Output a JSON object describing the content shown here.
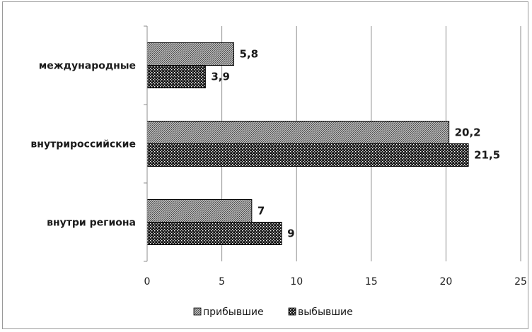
{
  "chart_data": {
    "type": "bar",
    "orientation": "horizontal",
    "categories": [
      "международные",
      "внутрироссийские",
      "внутри региона"
    ],
    "series": [
      {
        "name": "прибывшие",
        "values": [
          5.8,
          20.2,
          7
        ],
        "labels": [
          "5,8",
          "20,2",
          "7"
        ],
        "pattern": "fine-hatch"
      },
      {
        "name": "выбывшие",
        "values": [
          3.9,
          21.5,
          9
        ],
        "labels": [
          "3,9",
          "21,5",
          "9"
        ],
        "pattern": "dots"
      }
    ],
    "xlim": [
      0,
      25
    ],
    "xticks": [
      0,
      5,
      10,
      15,
      20,
      25
    ],
    "xtick_labels": [
      "0",
      "5",
      "10",
      "15",
      "20",
      "25"
    ],
    "grid": "vertical",
    "legend_position": "bottom"
  }
}
